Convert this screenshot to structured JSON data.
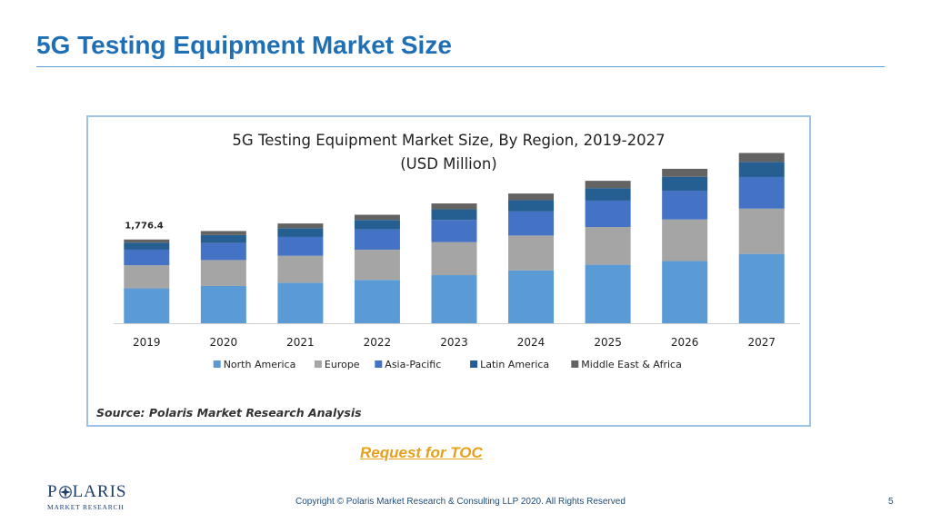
{
  "slide": {
    "title": "5G Testing Equipment Market Size",
    "toc_link": "Request for TOC",
    "copyright": "Copyright © Polaris Market Research & Consulting LLP 2020. All Rights Reserved",
    "page_number": "5",
    "logo_main_left": "P",
    "logo_main_right": "LARIS",
    "logo_sub": "MARKET RESEARCH"
  },
  "chart_data": {
    "type": "bar",
    "stacked": true,
    "title": "5G Testing Equipment Market Size, By Region, 2019-2027",
    "subtitle": "(USD Million)",
    "source": "Source: Polaris Market Research Analysis",
    "categories": [
      "2019",
      "2020",
      "2021",
      "2022",
      "2023",
      "2024",
      "2025",
      "2026",
      "2027"
    ],
    "ylim": [
      0,
      3600
    ],
    "y_axis_visible": false,
    "grid": false,
    "legend_position": "bottom",
    "data_labels": [
      {
        "category": "2019",
        "text": "1,776.4"
      }
    ],
    "series": [
      {
        "name": "North America",
        "color": "#5b9bd5",
        "values": [
          740,
          790,
          860,
          920,
          1020,
          1120,
          1240,
          1320,
          1470
        ]
      },
      {
        "name": "Europe",
        "color": "#a5a5a5",
        "values": [
          490,
          550,
          570,
          640,
          700,
          740,
          800,
          880,
          960
        ]
      },
      {
        "name": "Asia-Pacific",
        "color": "#4472c4",
        "values": [
          330,
          360,
          400,
          430,
          470,
          510,
          560,
          610,
          670
        ]
      },
      {
        "name": "Latin America",
        "color": "#255e91",
        "values": [
          150,
          170,
          185,
          200,
          225,
          240,
          265,
          295,
          320
        ]
      },
      {
        "name": "Middle East & Africa",
        "color": "#636363",
        "values": [
          66,
          85,
          100,
          110,
          125,
          140,
          155,
          170,
          190
        ]
      }
    ]
  }
}
